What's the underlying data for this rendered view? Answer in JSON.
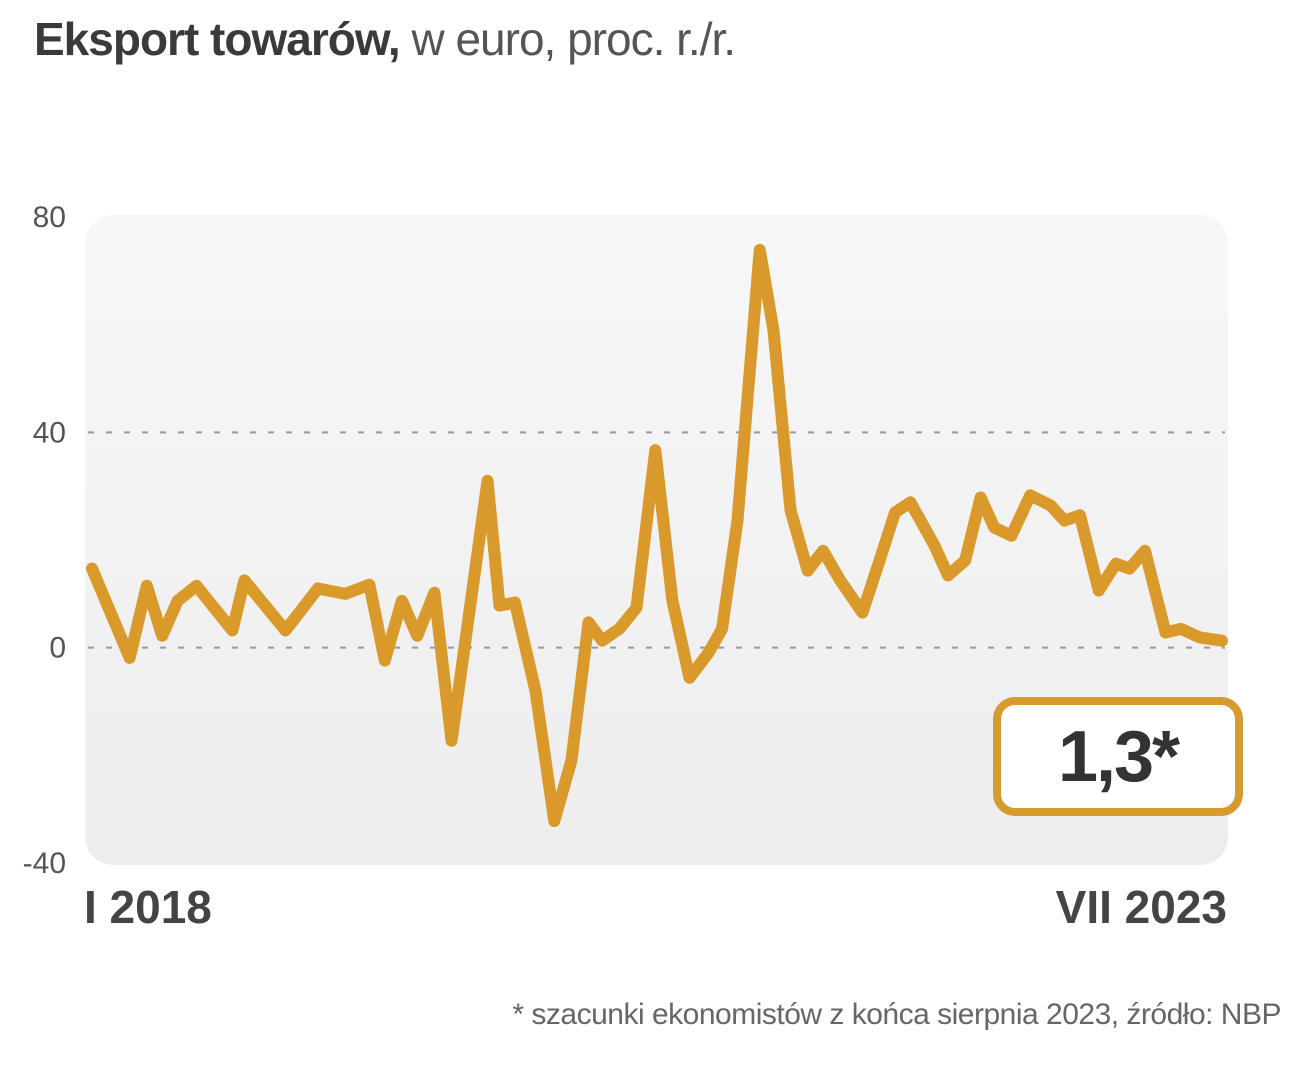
{
  "chart_data": {
    "type": "line",
    "title_bold": "Eksport towarów,",
    "title_rest": " w euro, proc. r./r.",
    "xlabel": "",
    "ylabel": "",
    "x_unit": "months since I 2018",
    "x_tick_labels": [
      "I 2018",
      "VII 2023"
    ],
    "xlim": [
      0,
      66
    ],
    "ylim": [
      -40,
      80
    ],
    "y_ticks": [
      80,
      40,
      0,
      -40
    ],
    "y_tick_labels": [
      "80",
      "40",
      "0",
      "-40"
    ],
    "grid": "dashed at 40 and 0",
    "series": [
      {
        "name": "Eksport towarów",
        "color": "#d99a2b",
        "x": [
          0,
          2.2,
          3.2,
          4.1,
          5,
          6.1,
          8.2,
          8.9,
          11.3,
          13.2,
          14.8,
          16.2,
          17.1,
          18.1,
          19,
          20,
          21,
          23.1,
          23.8,
          24.7,
          25.9,
          27,
          28,
          29,
          29.8,
          30.8,
          31.8,
          32.9,
          33.9,
          34.9,
          36,
          36.8,
          37.7,
          39,
          39.8,
          40.8,
          41.8,
          42.7,
          43.7,
          45,
          46,
          46.9,
          47.8,
          49.2,
          50,
          51,
          51.9,
          52.7,
          53.7,
          54.8,
          56,
          56.8,
          57.7,
          58.8,
          59.8,
          60.6,
          61.5,
          62.7,
          63.6,
          64.7,
          66
        ],
        "values": [
          14.7,
          -1.9,
          11.5,
          2.2,
          8.7,
          11.5,
          3.2,
          12.5,
          3.2,
          11,
          10,
          11.7,
          -2.4,
          8.7,
          2.2,
          10.2,
          -17.3,
          31,
          7.8,
          8.4,
          -8,
          -32.2,
          -21,
          4.7,
          1.3,
          3.5,
          7.4,
          36.7,
          8.7,
          -5.6,
          -1,
          3.5,
          23.6,
          73.9,
          59,
          25.5,
          14.3,
          18,
          12.5,
          6.5,
          16.2,
          25.1,
          27,
          19,
          13.4,
          16.2,
          27.9,
          22.3,
          20.8,
          28.3,
          26.4,
          23.6,
          24.6,
          10.6,
          15.6,
          14.7,
          18,
          2.8,
          3.5,
          1.9,
          1.3
        ]
      }
    ],
    "annotation": "1,3*",
    "footnote": "* szacunki ekonomistów z końca sierpnia 2023, źródło: NBP"
  }
}
